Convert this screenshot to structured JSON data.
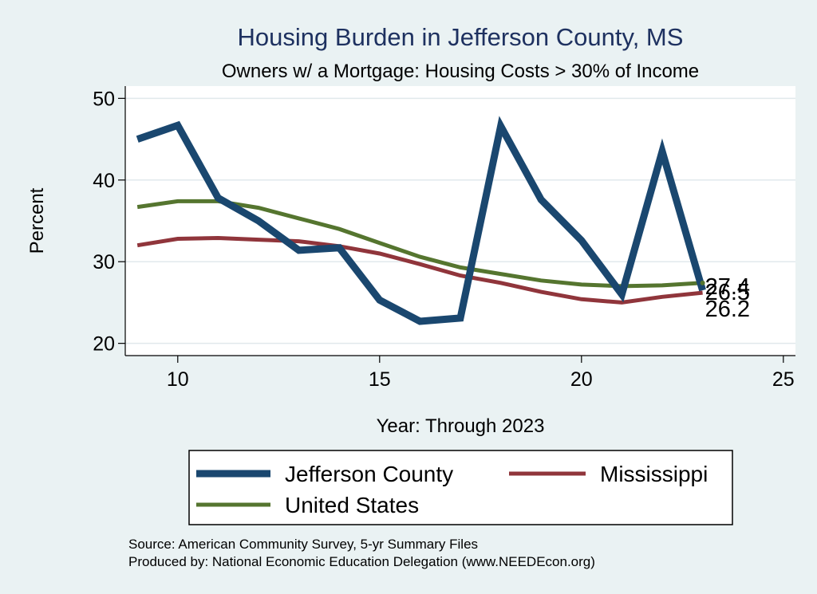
{
  "chart_data": {
    "type": "line",
    "title": "Housing Burden in Jefferson County, MS",
    "subtitle": "Owners w/ a Mortgage: Housing Costs > 30% of Income",
    "xlabel": "Year: Through 2023",
    "ylabel": "Percent",
    "xlim": [
      8.7,
      25.3
    ],
    "ylim": [
      18.5,
      51.5
    ],
    "x_ticks": [
      10,
      15,
      20,
      25
    ],
    "y_ticks": [
      20,
      30,
      40,
      50
    ],
    "grid": true,
    "x": [
      9,
      10,
      11,
      12,
      13,
      14,
      15,
      16,
      17,
      18,
      19,
      20,
      21,
      22,
      23
    ],
    "series": [
      {
        "name": "Jefferson County",
        "color": "#1a476f",
        "values": [
          45.0,
          46.7,
          37.8,
          35.0,
          31.4,
          31.7,
          25.3,
          22.7,
          23.1,
          46.6,
          37.6,
          32.6,
          26.0,
          43.5,
          26.5
        ]
      },
      {
        "name": "Mississippi",
        "color": "#90353b",
        "values": [
          32.0,
          32.8,
          32.9,
          32.7,
          32.5,
          31.9,
          31.0,
          29.7,
          28.3,
          27.4,
          26.3,
          25.4,
          25.0,
          25.7,
          26.2
        ]
      },
      {
        "name": "United States",
        "color": "#55752f",
        "values": [
          36.7,
          37.4,
          37.4,
          36.6,
          35.3,
          34.0,
          32.3,
          30.6,
          29.3,
          28.5,
          27.7,
          27.2,
          27.0,
          27.1,
          27.4
        ]
      }
    ],
    "end_labels": [
      {
        "series": "United States",
        "text": "27.4"
      },
      {
        "series": "Jefferson County",
        "text": "26.5"
      },
      {
        "series": "Mississippi",
        "text": "26.2"
      }
    ],
    "legend": {
      "placement": "bottom",
      "entries": [
        "Jefferson County",
        "Mississippi",
        "United States"
      ]
    },
    "notes": [
      "Source: American Community Survey, 5-yr Summary Files",
      "Produced by: National Economic Education Delegation (www.NEEDEcon.org)"
    ]
  },
  "colors": {
    "background": "#eaf2f3",
    "plot_background": "#ffffff",
    "title": "#1e3160",
    "grid": "#e1e9ec"
  }
}
